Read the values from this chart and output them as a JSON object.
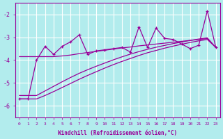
{
  "xlabel": "Windchill (Refroidissement éolien,°C)",
  "background_color": "#b2eced",
  "grid_color": "#ffffff",
  "line_color": "#990099",
  "x_data": [
    0,
    1,
    2,
    3,
    4,
    5,
    6,
    7,
    8,
    9,
    10,
    11,
    12,
    13,
    14,
    15,
    16,
    17,
    18,
    19,
    20,
    21,
    22,
    23
  ],
  "jagged_line": [
    -5.7,
    -5.7,
    -4.0,
    -3.4,
    -3.75,
    -3.4,
    -3.2,
    -2.9,
    -3.75,
    -3.6,
    -3.55,
    -3.5,
    -3.45,
    -3.65,
    -2.55,
    -3.45,
    -2.6,
    -3.05,
    -3.1,
    -3.3,
    -3.5,
    -3.35,
    -1.85,
    -3.45
  ],
  "flat_line": [
    -3.85,
    -3.85,
    -3.85,
    -3.85,
    -3.85,
    -3.82,
    -3.78,
    -3.72,
    -3.67,
    -3.62,
    -3.57,
    -3.52,
    -3.47,
    -3.43,
    -3.38,
    -3.34,
    -3.3,
    -3.26,
    -3.22,
    -3.18,
    -3.14,
    -3.1,
    -3.06,
    -3.45
  ],
  "lower_line1": [
    -5.55,
    -5.55,
    -5.55,
    -5.35,
    -5.15,
    -4.95,
    -4.76,
    -4.58,
    -4.42,
    -4.27,
    -4.13,
    -3.99,
    -3.86,
    -3.74,
    -3.63,
    -3.53,
    -3.44,
    -3.36,
    -3.28,
    -3.21,
    -3.14,
    -3.08,
    -3.03,
    -3.45
  ],
  "lower_line2": [
    -5.7,
    -5.7,
    -5.7,
    -5.55,
    -5.38,
    -5.2,
    -5.02,
    -4.84,
    -4.67,
    -4.51,
    -4.35,
    -4.2,
    -4.06,
    -3.93,
    -3.8,
    -3.68,
    -3.58,
    -3.48,
    -3.39,
    -3.31,
    -3.23,
    -3.16,
    -3.1,
    -3.45
  ],
  "ylim": [
    -6.5,
    -1.5
  ],
  "yticks": [
    -6,
    -5,
    -4,
    -3,
    -2
  ],
  "xlim": [
    -0.5,
    23.5
  ]
}
